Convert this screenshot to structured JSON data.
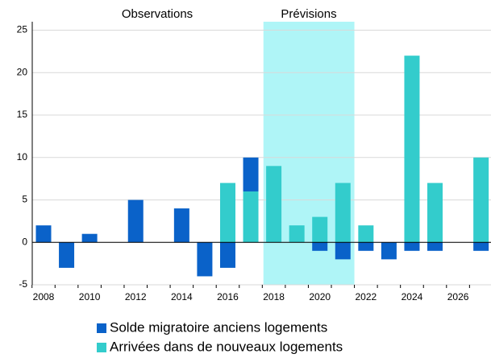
{
  "chart_data": {
    "type": "bar",
    "stacked": true,
    "annotations": [
      {
        "text": "Observations",
        "color": "#000000"
      },
      {
        "text": "Prévisions",
        "color": "#0000ff"
      }
    ],
    "shade_color": "#aff5f7",
    "categories": [
      "2008",
      null,
      "2010",
      null,
      "2012",
      null,
      "2014",
      null,
      "2016",
      null,
      "2018",
      null,
      "2020",
      null,
      "2022",
      null,
      "2024",
      null,
      "2026",
      null
    ],
    "series": [
      {
        "name": "Solde migratoire anciens logements",
        "color": "#0a62c9",
        "values": [
          2,
          -3,
          1,
          0,
          5,
          0,
          4,
          -4,
          -3,
          4,
          0,
          0,
          -1,
          -2,
          -1,
          -2,
          -1,
          -1,
          0,
          -1
        ]
      },
      {
        "name": "Arrivées dans de nouveaux logements",
        "color": "#33cccc",
        "values": [
          0,
          0,
          0,
          0,
          0,
          0,
          0,
          0,
          7,
          6,
          9,
          2,
          3,
          7,
          2,
          0,
          22,
          7,
          0,
          10
        ]
      }
    ],
    "ylim": [
      -5,
      26
    ],
    "yticks": [
      -5,
      0,
      5,
      10,
      15,
      20,
      25
    ],
    "grid": true
  }
}
